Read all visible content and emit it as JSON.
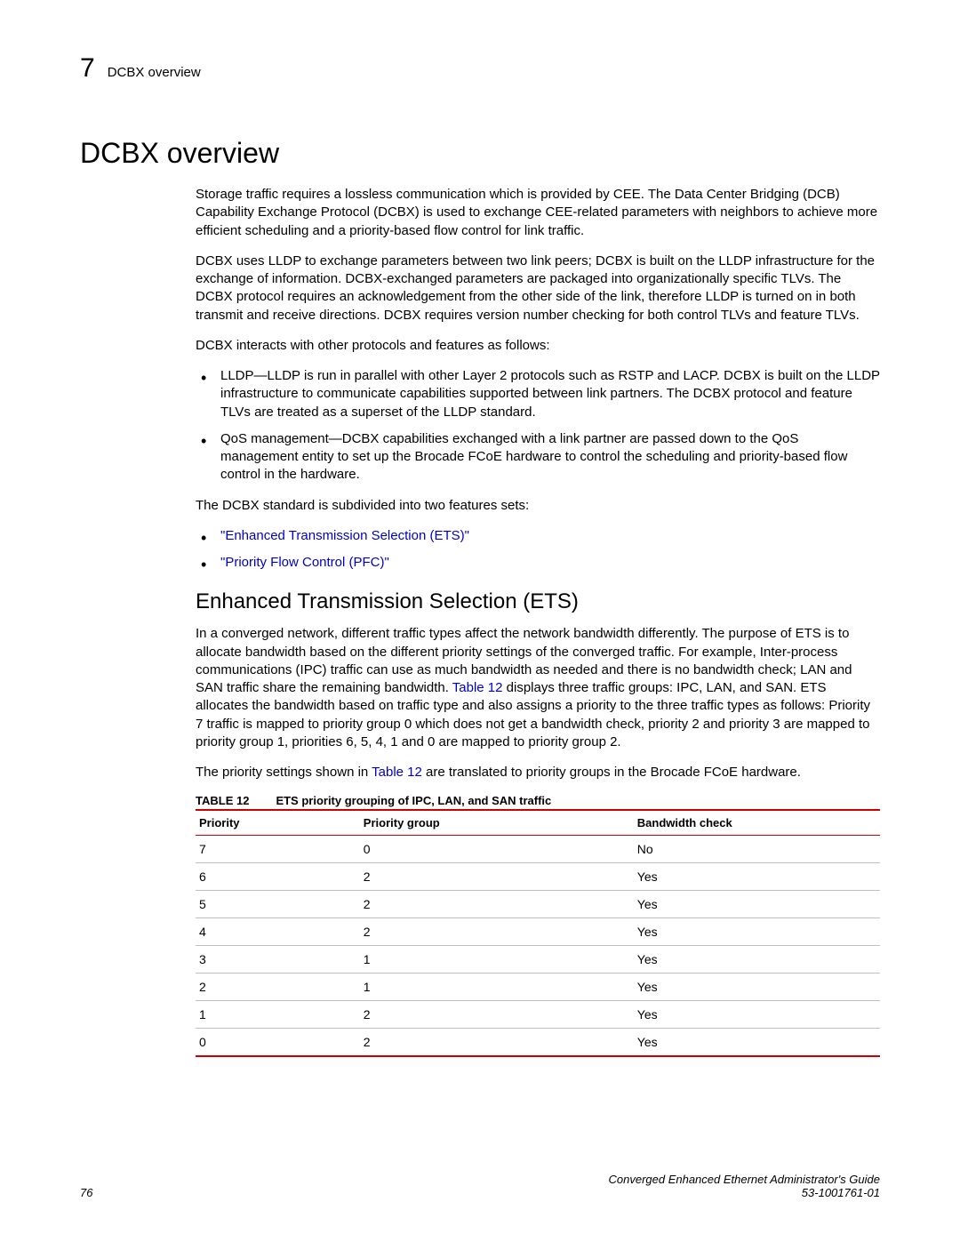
{
  "header": {
    "chapter_number": "7",
    "breadcrumb": "DCBX overview"
  },
  "title": "DCBX overview",
  "paragraphs": {
    "p1": "Storage traffic requires a lossless communication which is provided by CEE. The Data Center Bridging (DCB) Capability Exchange Protocol (DCBX) is used to exchange CEE-related parameters with neighbors to achieve more efficient scheduling and a priority-based flow control for link traffic.",
    "p2": "DCBX uses LLDP to exchange parameters between two link peers; DCBX is built on the LLDP infrastructure for the exchange of information. DCBX-exchanged parameters are packaged into organizationally specific TLVs. The DCBX protocol requires an acknowledgement from the other side of the link, therefore LLDP is turned on in both transmit and receive directions. DCBX requires version number checking for both control TLVs and feature TLVs.",
    "p3": "DCBX interacts with other protocols and features as follows:",
    "b1": "LLDP—LLDP is run in parallel with other Layer 2 protocols such as RSTP and LACP. DCBX is built on the LLDP infrastructure to communicate capabilities supported between link partners. The DCBX protocol and feature TLVs are treated as a superset of the LLDP standard.",
    "b2": "QoS management—DCBX capabilities exchanged with a link partner are passed down to the QoS management entity to set up the Brocade FCoE hardware to control the scheduling and priority-based flow control in the hardware.",
    "p4": "The DCBX standard is subdivided into two features sets:",
    "link1": "\"Enhanced Transmission Selection (ETS)\"",
    "link2": "\"Priority Flow Control (PFC)\""
  },
  "subheading": "Enhanced Transmission Selection (ETS)",
  "ets": {
    "p1a": "In a converged network, different traffic types affect the network bandwidth differently. The purpose of ETS is to allocate bandwidth based on the different priority settings of the converged traffic. For example, Inter-process communications (IPC) traffic can use as much bandwidth as needed and there is no bandwidth check; LAN and SAN traffic share the remaining bandwidth. ",
    "p1_link": "Table 12",
    "p1b": " displays three traffic groups: IPC, LAN, and SAN. ETS allocates the bandwidth based on traffic type and also assigns a priority to the three traffic types as follows: Priority 7 traffic is mapped to priority group 0 which does not get a bandwidth check, priority 2 and priority 3 are mapped to priority group 1, priorities 6, 5, 4, 1 and 0 are mapped to priority group 2.",
    "p2a": "The priority settings shown in ",
    "p2_link": "Table 12",
    "p2b": " are translated to priority groups in the Brocade FCoE hardware."
  },
  "table": {
    "caption_label": "TABLE 12",
    "caption_text": "ETS priority grouping of IPC, LAN, and SAN traffic",
    "columns": [
      "Priority",
      "Priority group",
      "Bandwidth check"
    ],
    "rows": [
      [
        "7",
        "0",
        "No"
      ],
      [
        "6",
        "2",
        "Yes"
      ],
      [
        "5",
        "2",
        "Yes"
      ],
      [
        "4",
        "2",
        "Yes"
      ],
      [
        "3",
        "1",
        "Yes"
      ],
      [
        "2",
        "1",
        "Yes"
      ],
      [
        "1",
        "2",
        "Yes"
      ],
      [
        "0",
        "2",
        "Yes"
      ]
    ],
    "border_color": "#cc0000",
    "row_border_color": "#bfbfbf"
  },
  "footer": {
    "page_number": "76",
    "doc_title": "Converged Enhanced Ethernet Administrator's Guide",
    "doc_id": "53-1001761-01"
  },
  "link_color": "#0000cc"
}
